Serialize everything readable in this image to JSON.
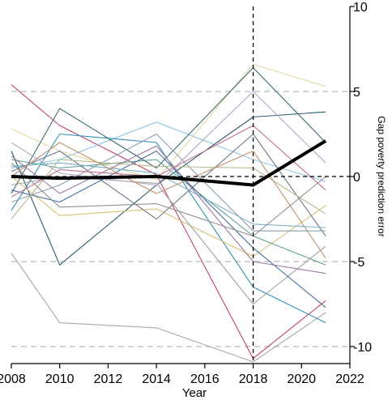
{
  "chart_data": {
    "type": "line",
    "title": "",
    "xlabel": "Year",
    "ylabel": "Gap poverty prediction error",
    "xlim": [
      2008,
      2022
    ],
    "ylim": [
      -11,
      10
    ],
    "x_ticks": [
      2008,
      2010,
      2012,
      2014,
      2016,
      2018,
      2020,
      2022
    ],
    "y_ticks": [
      10,
      5,
      0,
      -5,
      -10
    ],
    "x_tick_labels": [
      "2008",
      "2010",
      "2012",
      "2014",
      "2016",
      "2018",
      "2020",
      "2022"
    ],
    "y_tick_labels": [
      "10",
      "5",
      "0",
      "-5",
      "-10"
    ],
    "y_axis_side": "right",
    "grid": "horizontal dashed at ±5 and ±10",
    "reference_lines": {
      "vertical_x": 2018,
      "horizontal_y": 0
    },
    "x": [
      2008,
      2010,
      2014,
      2018,
      2021
    ],
    "mean_series": {
      "values": [
        0.0,
        -0.1,
        0.0,
        -0.5,
        2.1
      ],
      "color": "#000000"
    },
    "series": [
      {
        "values": [
          5.4,
          3.0,
          0.1,
          -10.7,
          -7.3
        ],
        "color": "#c2416a"
      },
      {
        "values": [
          -4.5,
          -8.6,
          -8.9,
          -10.9,
          -8.0
        ],
        "color": "#a8a8a8"
      },
      {
        "values": [
          0.5,
          1.0,
          3.2,
          1.0,
          -0.3
        ],
        "color": "#8fc7e0"
      },
      {
        "values": [
          2.8,
          1.5,
          -0.2,
          6.6,
          5.3
        ],
        "color": "#e0d9a0"
      },
      {
        "values": [
          -1.0,
          4.0,
          0.5,
          6.4,
          2.0
        ],
        "color": "#3d6b75"
      },
      {
        "values": [
          1.5,
          -5.2,
          -0.5,
          3.5,
          3.8
        ],
        "color": "#2b5a6e"
      },
      {
        "values": [
          -2.0,
          2.5,
          2.0,
          -6.5,
          -8.6
        ],
        "color": "#2f8fb5"
      },
      {
        "values": [
          0.0,
          -2.3,
          -1.9,
          -4.7,
          -1.7
        ],
        "color": "#d8c070"
      },
      {
        "values": [
          1.0,
          0.5,
          1.0,
          -3.5,
          -5.2
        ],
        "color": "#5aa08e"
      },
      {
        "values": [
          -0.5,
          0.0,
          -0.4,
          -7.5,
          -4.1
        ],
        "color": "#a0a0a0"
      },
      {
        "values": [
          0.3,
          1.5,
          -2.5,
          2.5,
          -3.5
        ],
        "color": "#6e7a8a"
      },
      {
        "values": [
          -1.5,
          -0.5,
          2.5,
          -3.2,
          -3.2
        ],
        "color": "#8aa0b0"
      },
      {
        "values": [
          2.0,
          0.2,
          -0.5,
          5.0,
          0.8
        ],
        "color": "#b5a8c8"
      },
      {
        "values": [
          -0.8,
          -1.5,
          1.5,
          -4.2,
          -7.7
        ],
        "color": "#4a6f9a"
      },
      {
        "values": [
          0.6,
          0.8,
          0.2,
          -2.8,
          -3.0
        ],
        "color": "#7ab0c8"
      },
      {
        "values": [
          -2.5,
          1.0,
          0.6,
          0.5,
          -2.2
        ],
        "color": "#b8b890"
      },
      {
        "values": [
          1.2,
          -1.0,
          1.8,
          -5.0,
          -5.7
        ],
        "color": "#9a7aa0"
      },
      {
        "values": [
          0.0,
          2.0,
          -1.0,
          1.5,
          -4.8
        ],
        "color": "#c09070"
      },
      {
        "values": [
          -1.2,
          0.4,
          0.0,
          3.0,
          -0.8
        ],
        "color": "#c07090"
      },
      {
        "values": [
          0.8,
          -1.8,
          -1.6,
          -3.5,
          0.0
        ],
        "color": "#909090"
      }
    ]
  }
}
